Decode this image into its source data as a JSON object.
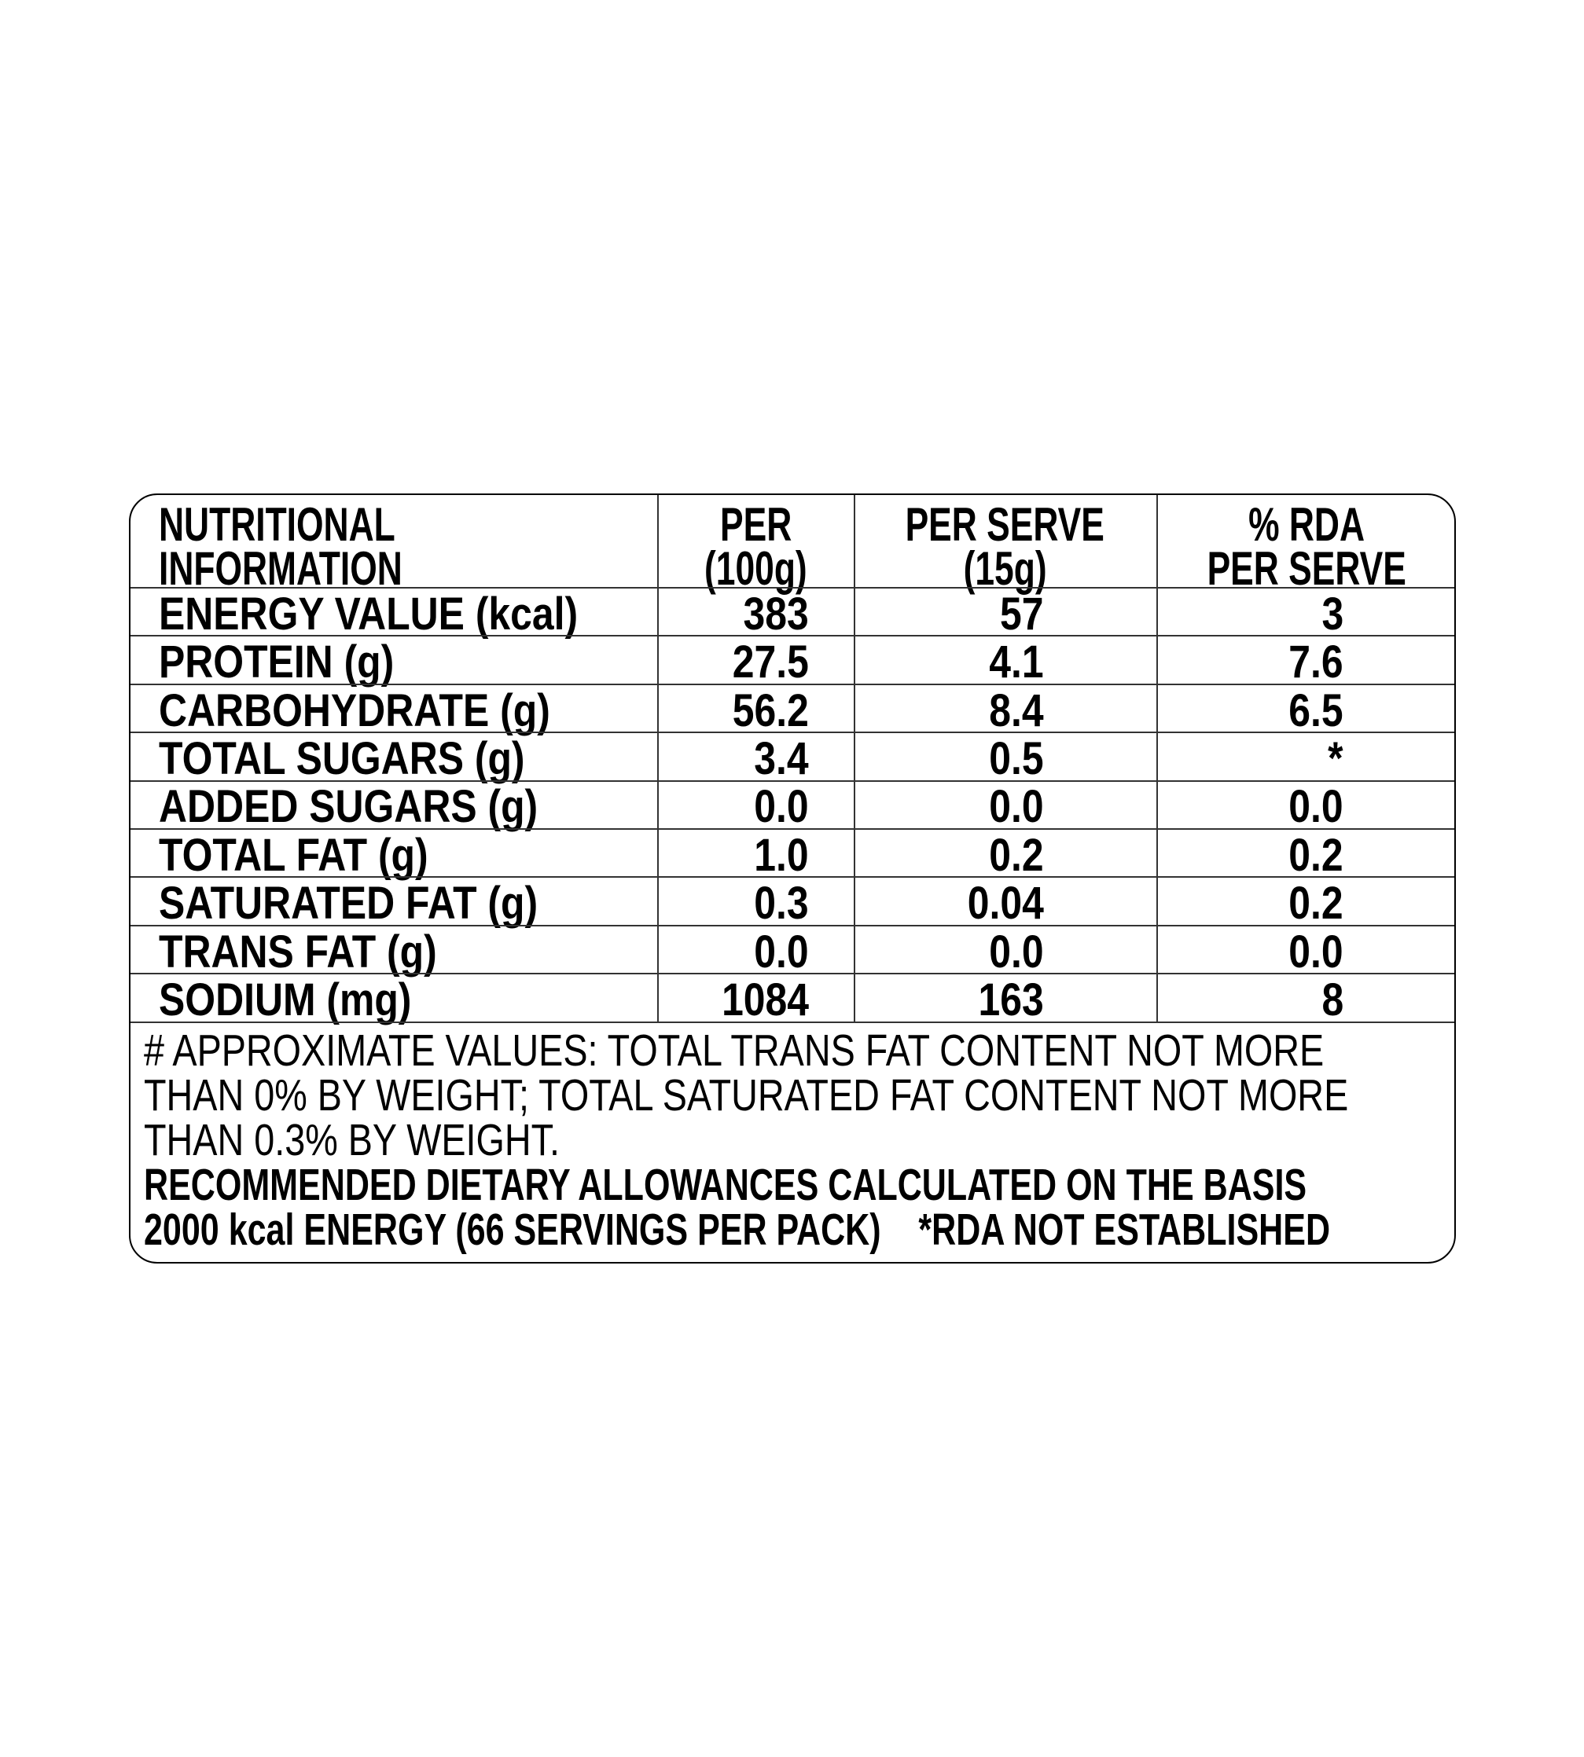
{
  "header": {
    "label_line1": "NUTRITIONAL",
    "label_line2": "INFORMATION",
    "col1_line1": "PER",
    "col1_line2": "(100g)",
    "col2_line1": "PER SERVE",
    "col2_line2": "(15g)",
    "col3_line1": "% RDA",
    "col3_line2": "PER SERVE"
  },
  "rows": [
    {
      "label": "ENERGY VALUE (kcal)",
      "per100g": "383",
      "per_serve": "57",
      "rda": "3"
    },
    {
      "label": "PROTEIN (g)",
      "per100g": "27.5",
      "per_serve": "4.1",
      "rda": "7.6"
    },
    {
      "label": "CARBOHYDRATE (g)",
      "per100g": "56.2",
      "per_serve": "8.4",
      "rda": "6.5"
    },
    {
      "label": "TOTAL SUGARS (g)",
      "per100g": "3.4",
      "per_serve": "0.5",
      "rda": "*"
    },
    {
      "label": "ADDED SUGARS (g)",
      "per100g": "0.0",
      "per_serve": "0.0",
      "rda": "0.0"
    },
    {
      "label": "TOTAL FAT (g)",
      "per100g": "1.0",
      "per_serve": "0.2",
      "rda": "0.2"
    },
    {
      "label": "SATURATED FAT (g)",
      "per100g": "0.3",
      "per_serve": "0.04",
      "rda": "0.2"
    },
    {
      "label": "TRANS FAT (g)",
      "per100g": "0.0",
      "per_serve": "0.0",
      "rda": "0.0"
    },
    {
      "label": "SODIUM (mg)",
      "per100g": "1084",
      "per_serve": "163",
      "rda": "8"
    }
  ],
  "footer": {
    "note_line1": "# APPROXIMATE VALUES: TOTAL TRANS FAT CONTENT NOT MORE",
    "note_line2": "THAN 0% BY WEIGHT; TOTAL SATURATED FAT CONTENT NOT MORE",
    "note_line3": "THAN 0.3% BY WEIGHT.",
    "rda_line1": "RECOMMENDED DIETARY ALLOWANCES CALCULATED ON THE BASIS",
    "rda_line2": "2000 kcal ENERGY (66 SERVINGS PER PACK)    *RDA NOT ESTABLISHED"
  }
}
